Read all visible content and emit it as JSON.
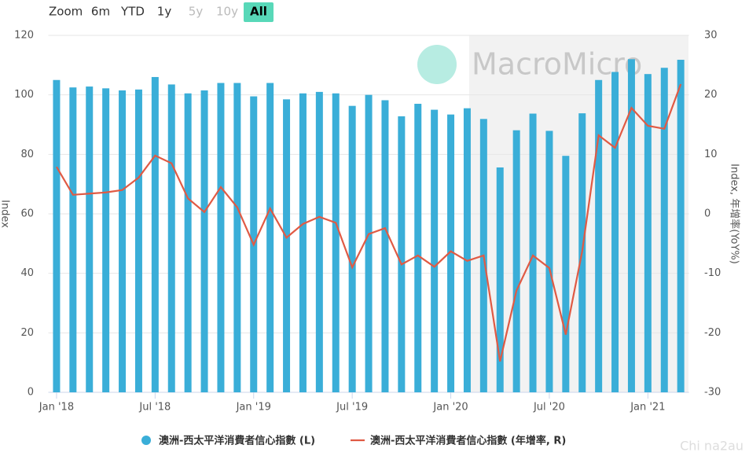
{
  "ui": {
    "zoom_label": "Zoom",
    "zoom_buttons": [
      "6m",
      "YTD",
      "1y",
      "5y",
      "10y",
      "All"
    ],
    "watermark": "MacroMicro",
    "corner_watermark": "Chi na2au"
  },
  "chart_data": {
    "type": "bar",
    "categories": [
      "Jan '18",
      null,
      null,
      null,
      null,
      null,
      "Jul '18",
      null,
      null,
      null,
      null,
      null,
      "Jan '19",
      null,
      null,
      null,
      null,
      null,
      "Jul '19",
      null,
      null,
      null,
      null,
      null,
      "Jan '20",
      null,
      null,
      null,
      null,
      null,
      "Jul '20",
      null,
      null,
      null,
      null,
      null,
      "Jan '21",
      null,
      null
    ],
    "y_label": "Index",
    "y2_label": "Index, 年增率(YoY%)",
    "ylim": [
      0,
      120
    ],
    "yticks": [
      0,
      20,
      40,
      60,
      80,
      100,
      120
    ],
    "y2lim": [
      -30,
      30
    ],
    "y2ticks": [
      -30,
      -20,
      -10,
      0,
      10,
      20,
      30
    ],
    "grid": true,
    "series": [
      {
        "name": "澳洲-西太平洋消費者信心指數 (L)",
        "color": "#3aaed8",
        "type": "bar",
        "values": [
          105,
          102.5,
          102.8,
          102.2,
          101.5,
          101.8,
          106,
          103.5,
          100.5,
          101.5,
          104,
          104,
          99.5,
          104,
          98.5,
          100.5,
          101,
          100.5,
          96.3,
          100,
          98.2,
          92.8,
          97,
          95,
          93.4,
          95.5,
          91.9,
          75.6,
          88.1,
          93.7,
          87.9,
          79.5,
          93.8,
          105,
          107.7,
          112,
          107,
          109.1,
          111.8
        ]
      },
      {
        "name": "澳洲-西太平洋消費者信心指數 (年增率, R)",
        "color": "#e05a44",
        "type": "line",
        "axis": "y2",
        "values": [
          7.9,
          3.2,
          3.4,
          3.6,
          4,
          6.1,
          9.8,
          8.5,
          2.6,
          0.3,
          4.5,
          1.1,
          -5.2,
          0.9,
          -4,
          -1.7,
          -0.5,
          -1.5,
          -9,
          -3.4,
          -2.4,
          -8.5,
          -7,
          -8.9,
          -6.3,
          -7.9,
          -7,
          -24.8,
          -12.9,
          -7,
          -9.1,
          -20.3,
          -6.3,
          13.2,
          11.1,
          17.8,
          14.8,
          14.3,
          21.8
        ]
      }
    ]
  }
}
